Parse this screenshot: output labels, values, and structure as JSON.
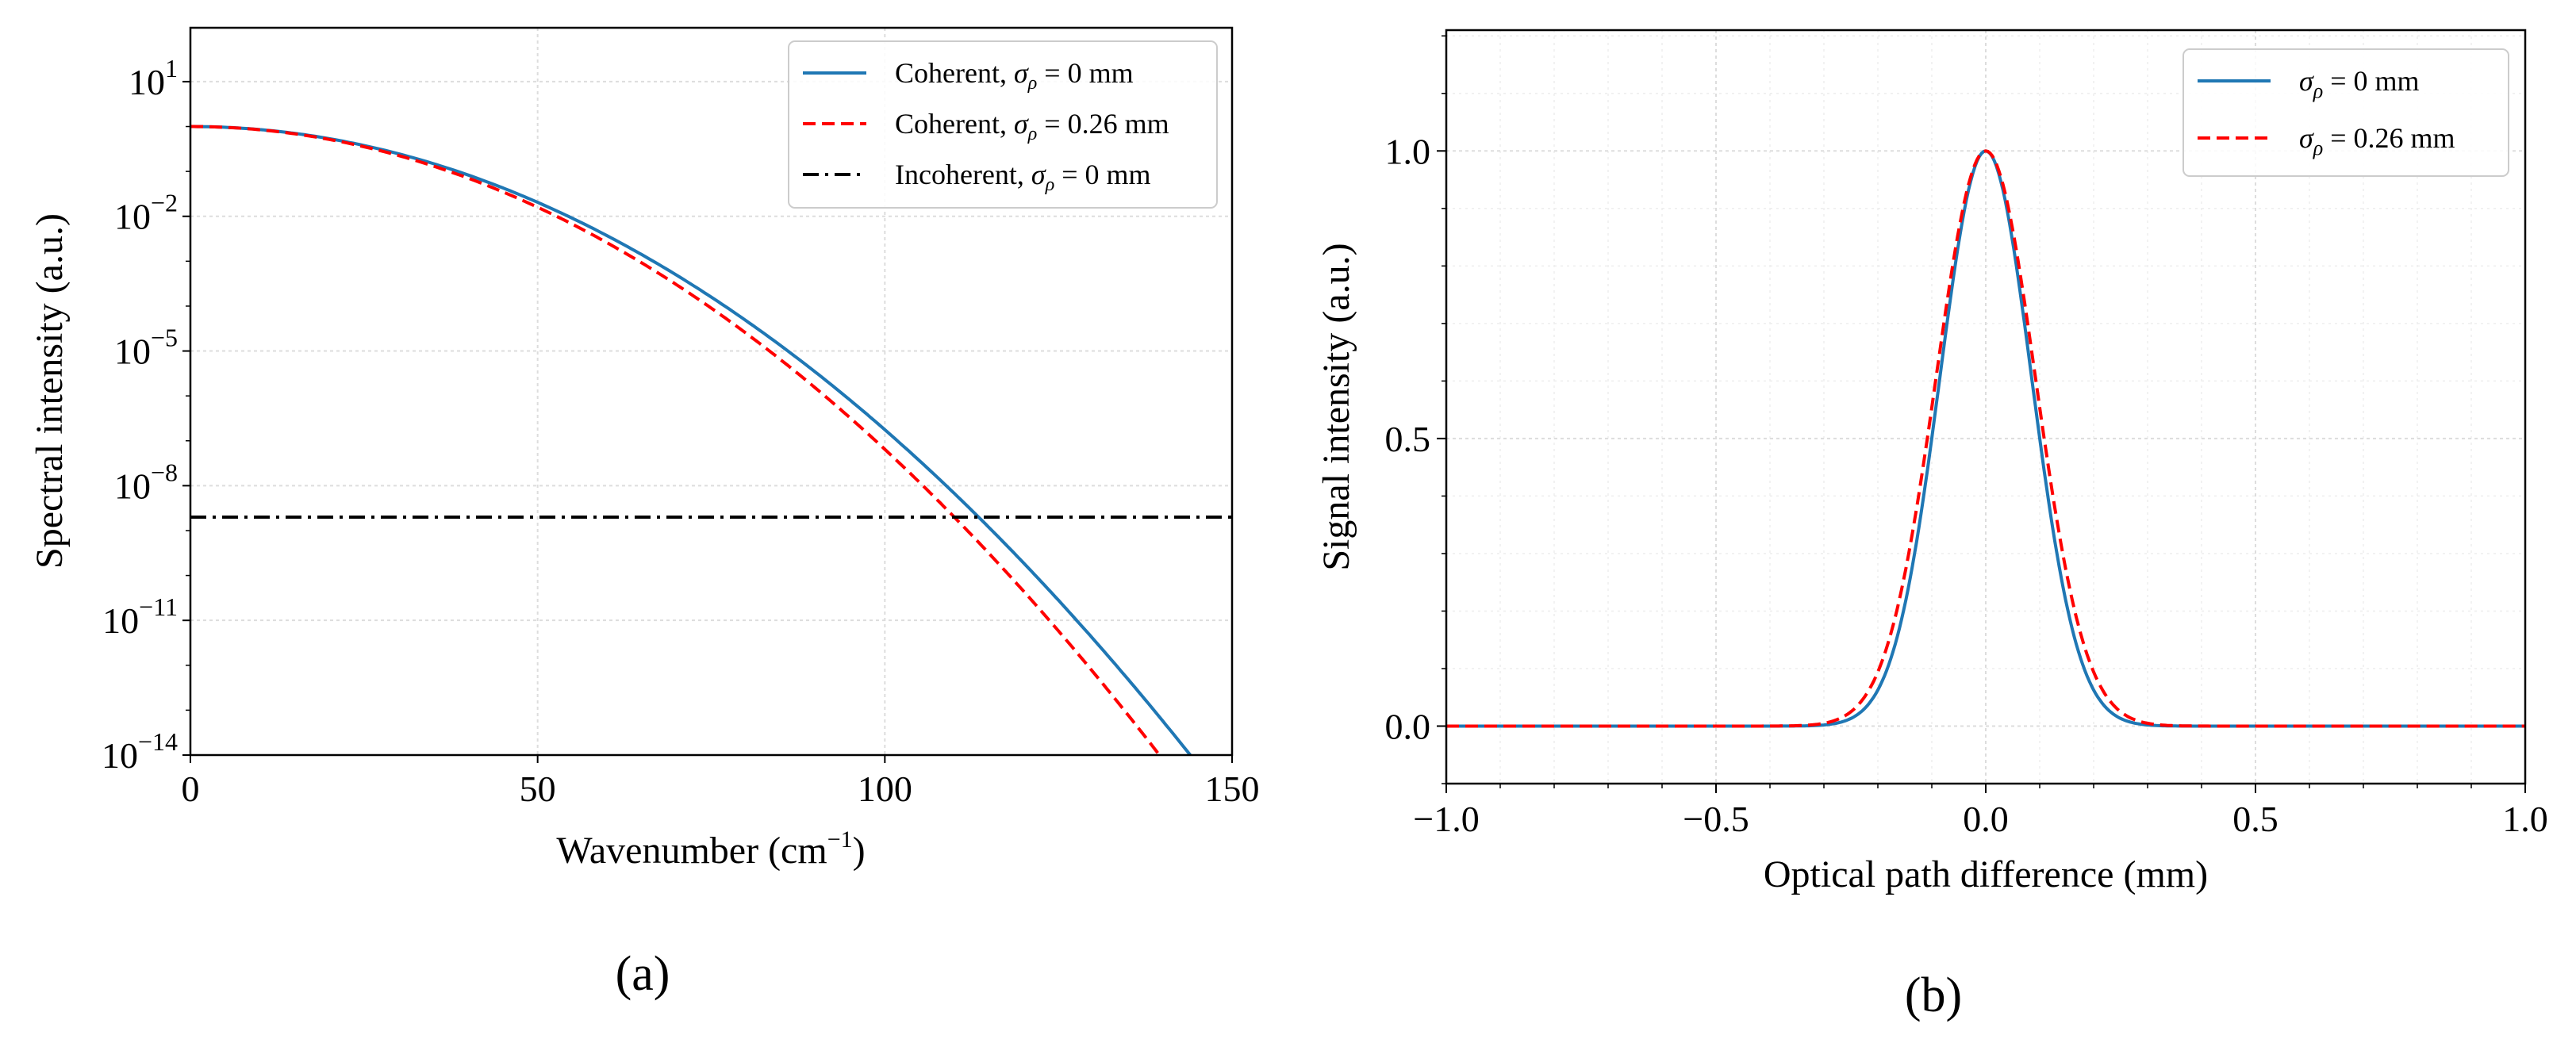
{
  "chart_data": [
    {
      "panel": "(a)",
      "type": "line",
      "yscale": "log",
      "xlabel_main": "Wavenumber (cm",
      "xlabel_sup": "−1",
      "xlabel_end": ")",
      "ylabel": "Spectral intensity (a.u.)",
      "xlim": [
        0,
        150
      ],
      "ylim_exp": [
        -14,
        2.2
      ],
      "xticks": [
        0,
        50,
        100,
        150
      ],
      "xtick_labels": [
        "0",
        "50",
        "100",
        "150"
      ],
      "yticks_exp": [
        -14,
        -11,
        -8,
        -5,
        -2,
        1
      ],
      "ytick_base": "10",
      "ytick_sups": [
        "−14",
        "−11",
        "−8",
        "−5",
        "−2",
        "1"
      ],
      "grid": true,
      "legend_position": "top-right",
      "series": [
        {
          "name": "Coherent, σρ = 0 mm",
          "legend_prefix": "Coherent, ",
          "legend_sigma": "σ",
          "legend_sub": "ρ",
          "legend_suffix": " = 0 mm",
          "color": "#1f77b4",
          "style": "solid",
          "kind": "gaussian",
          "log10_peak": 0.0,
          "log10_drop_at": [
            113.5,
            -8.7
          ]
        },
        {
          "name": "Coherent, σρ = 0.26 mm",
          "legend_prefix": "Coherent, ",
          "legend_sigma": "σ",
          "legend_sub": "ρ",
          "legend_suffix": " = 0.26 mm",
          "color": "#ff0000",
          "style": "dashed",
          "kind": "gaussian",
          "log10_peak": 0.0,
          "log10_drop_at": [
            110,
            -8.7
          ]
        },
        {
          "name": "Incoherent, σρ = 0 mm",
          "legend_prefix": "Incoherent, ",
          "legend_sigma": "σ",
          "legend_sub": "ρ",
          "legend_suffix": " = 0 mm",
          "color": "#000000",
          "style": "dashdot",
          "kind": "constant",
          "log10_value": -8.7
        }
      ]
    },
    {
      "panel": "(b)",
      "type": "line",
      "yscale": "linear",
      "xlabel": "Optical path difference (mm)",
      "ylabel": "Signal intensity (a.u.)",
      "xlim": [
        -1.0,
        1.0
      ],
      "ylim": [
        -0.1,
        1.21
      ],
      "xticks": [
        -1.0,
        -0.5,
        0.0,
        0.5,
        1.0
      ],
      "xtick_labels": [
        "−1.0",
        "−0.5",
        "0.0",
        "0.5",
        "1.0"
      ],
      "yticks": [
        0.0,
        0.5,
        1.0
      ],
      "ytick_labels": [
        "0.0",
        "0.5",
        "1.0"
      ],
      "grid": true,
      "legend_position": "top-right",
      "series": [
        {
          "name": "σρ = 0 mm",
          "legend_sigma": "σ",
          "legend_sub": "ρ",
          "legend_suffix": " = 0 mm",
          "color": "#1f77b4",
          "style": "solid",
          "kind": "gaussian",
          "center": 0.0,
          "peak": 1.0,
          "sigma_mm": 0.085
        },
        {
          "name": "σρ = 0.26 mm",
          "legend_sigma": "σ",
          "legend_sub": "ρ",
          "legend_suffix": " = 0.26 mm",
          "color": "#ff0000",
          "style": "dashed",
          "kind": "gaussian",
          "center": 0.0,
          "peak": 1.0,
          "sigma_mm": 0.092
        }
      ]
    }
  ]
}
